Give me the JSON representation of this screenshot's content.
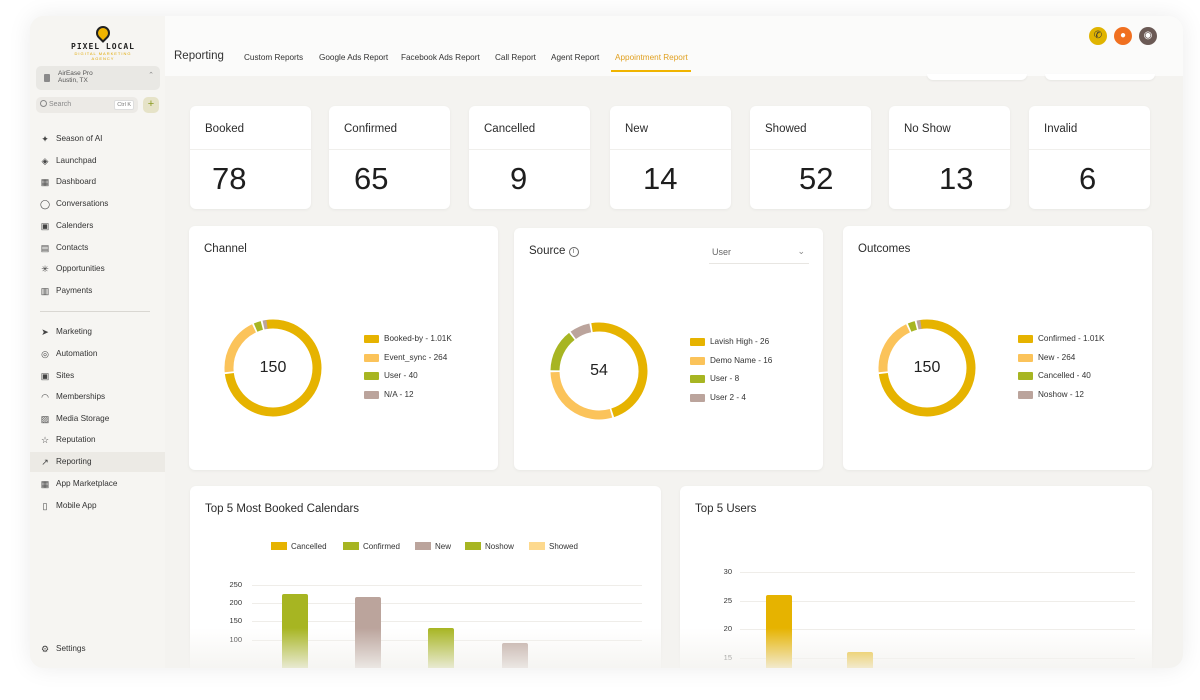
{
  "logo": {
    "text": "PIXEL LOCAL",
    "tagline": "DIGITAL MARKETING AGENCY"
  },
  "account": {
    "name": "AirEase Pro",
    "location": "Austin, TX"
  },
  "search": {
    "placeholder": "Search",
    "shortcut": "Ctrl K"
  },
  "sidebar": {
    "items": [
      {
        "label": "Season of AI",
        "icon": "sparkle-icon"
      },
      {
        "label": "Launchpad",
        "icon": "rocket-icon"
      },
      {
        "label": "Dashboard",
        "icon": "dashboard-icon"
      },
      {
        "label": "Conversations",
        "icon": "chat-icon"
      },
      {
        "label": "Calenders",
        "icon": "calendar-icon"
      },
      {
        "label": "Contacts",
        "icon": "contacts-icon"
      },
      {
        "label": "Opportunities",
        "icon": "opportunities-icon"
      },
      {
        "label": "Payments",
        "icon": "payments-icon"
      },
      {
        "label": "Marketing",
        "icon": "send-icon"
      },
      {
        "label": "Automation",
        "icon": "automation-icon"
      },
      {
        "label": "Sites",
        "icon": "sites-icon"
      },
      {
        "label": "Memberships",
        "icon": "memberships-icon"
      },
      {
        "label": "Media Storage",
        "icon": "media-icon"
      },
      {
        "label": "Reputation",
        "icon": "star-icon"
      },
      {
        "label": "Reporting",
        "icon": "trend-icon"
      },
      {
        "label": "App Marketplace",
        "icon": "apps-icon"
      },
      {
        "label": "Mobile App",
        "icon": "mobile-icon"
      }
    ],
    "settings": "Settings"
  },
  "header": {
    "title": "Reporting",
    "tabs": [
      "Custom Reports",
      "Google Ads Report",
      "Facebook Ads Report",
      "Call Report",
      "Agent Report",
      "Appointment Report"
    ],
    "active_tab": "Appointment Report"
  },
  "stats": [
    {
      "label": "Booked",
      "value": "78"
    },
    {
      "label": "Confirmed",
      "value": "65"
    },
    {
      "label": "Cancelled",
      "value": "9"
    },
    {
      "label": "New",
      "value": "14"
    },
    {
      "label": "Showed",
      "value": "52"
    },
    {
      "label": "No Show",
      "value": "13"
    },
    {
      "label": "Invalid",
      "value": "6"
    }
  ],
  "colors": {
    "gold": "#e6b300",
    "light_orange": "#fbc35a",
    "olive": "#a7b522",
    "mauve": "#bba49c",
    "pale": "#fdd98e"
  },
  "chart_data": [
    {
      "type": "pie",
      "title": "Channel",
      "center_label": "150",
      "slices": [
        {
          "label": "Booked-by - 1.01K",
          "value": 1010,
          "color": "#e6b300"
        },
        {
          "label": "Event_sync - 264",
          "value": 264,
          "color": "#fbc35a"
        },
        {
          "label": "User - 40",
          "value": 40,
          "color": "#a7b522"
        },
        {
          "label": "N/A - 12",
          "value": 12,
          "color": "#bba49c"
        }
      ]
    },
    {
      "type": "pie",
      "title": "Source",
      "center_label": "54",
      "filter": "User",
      "slices": [
        {
          "label": "Lavish High - 26",
          "value": 26,
          "color": "#e6b300"
        },
        {
          "label": "Demo Name - 16",
          "value": 16,
          "color": "#fbc35a"
        },
        {
          "label": "User - 8",
          "value": 8,
          "color": "#a7b522"
        },
        {
          "label": "User 2 - 4",
          "value": 4,
          "color": "#bba49c"
        }
      ]
    },
    {
      "type": "pie",
      "title": "Outcomes",
      "center_label": "150",
      "slices": [
        {
          "label": "Confirmed - 1.01K",
          "value": 1010,
          "color": "#e6b300"
        },
        {
          "label": "New - 264",
          "value": 264,
          "color": "#fbc35a"
        },
        {
          "label": "Cancelled - 40",
          "value": 40,
          "color": "#a7b522"
        },
        {
          "label": "Noshow - 12",
          "value": 12,
          "color": "#bba49c"
        }
      ]
    },
    {
      "type": "bar",
      "title": "Top 5 Most Booked Calendars",
      "legend": [
        {
          "name": "Cancelled",
          "color": "#e6b300"
        },
        {
          "name": "Confirmed",
          "color": "#a7b522"
        },
        {
          "name": "New",
          "color": "#bba49c"
        },
        {
          "name": "Noshow",
          "color": "#a7b522"
        },
        {
          "name": "Showed",
          "color": "#fdd98e"
        }
      ],
      "yticks": [
        "250",
        "200",
        "150",
        "100"
      ],
      "ylim": [
        0,
        250
      ],
      "bars": [
        {
          "series": "Confirmed",
          "value": 225,
          "color": "#a7b522"
        },
        {
          "series": "New",
          "value": 218,
          "color": "#bba49c"
        },
        {
          "series": "Noshow",
          "value": 132,
          "color": "#a7b522"
        },
        {
          "series": "New",
          "value": 90,
          "color": "#bba49c"
        }
      ]
    },
    {
      "type": "bar",
      "title": "Top 5 Users",
      "yticks": [
        "30",
        "25",
        "20",
        "15"
      ],
      "ylim": [
        10,
        30
      ],
      "bars": [
        {
          "value": 26,
          "color": "#e6b300"
        },
        {
          "value": 16,
          "color": "#e6b300"
        }
      ]
    }
  ]
}
